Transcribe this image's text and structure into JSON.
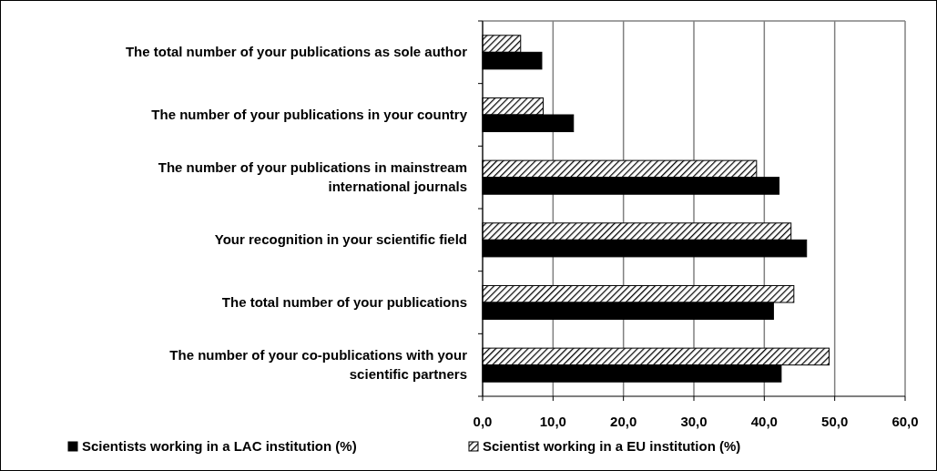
{
  "chart_data": {
    "type": "bar",
    "orientation": "horizontal",
    "categories": [
      "The total number of your publications as sole author",
      "The number of your publications in your country",
      "The number of your publications in mainstream international journals",
      "Your recognition in your scientific field",
      "The total number of your publications",
      "The number of your co-publications with your scientific partners"
    ],
    "series": [
      {
        "name": "Scientist working in a EU institution (%)",
        "color": "#000000",
        "values": [
          5.4,
          8.6,
          38.9,
          43.8,
          44.2,
          49.2
        ]
      },
      {
        "name": "Scientists working in a LAC institution (%)",
        "color": "#000000",
        "values": [
          8.4,
          12.9,
          42.1,
          46.0,
          41.3,
          42.4
        ]
      }
    ],
    "xlim": [
      0,
      60
    ],
    "xticks": [
      {
        "value": 0,
        "label": "0,0"
      },
      {
        "value": 10,
        "label": "10,0"
      },
      {
        "value": 20,
        "label": "20,0"
      },
      {
        "value": 30,
        "label": "30,0"
      },
      {
        "value": 40,
        "label": "40,0"
      },
      {
        "value": 50,
        "label": "50,0"
      },
      {
        "value": 60,
        "label": "60,0"
      }
    ],
    "grid": "x",
    "legend": "bottom"
  }
}
